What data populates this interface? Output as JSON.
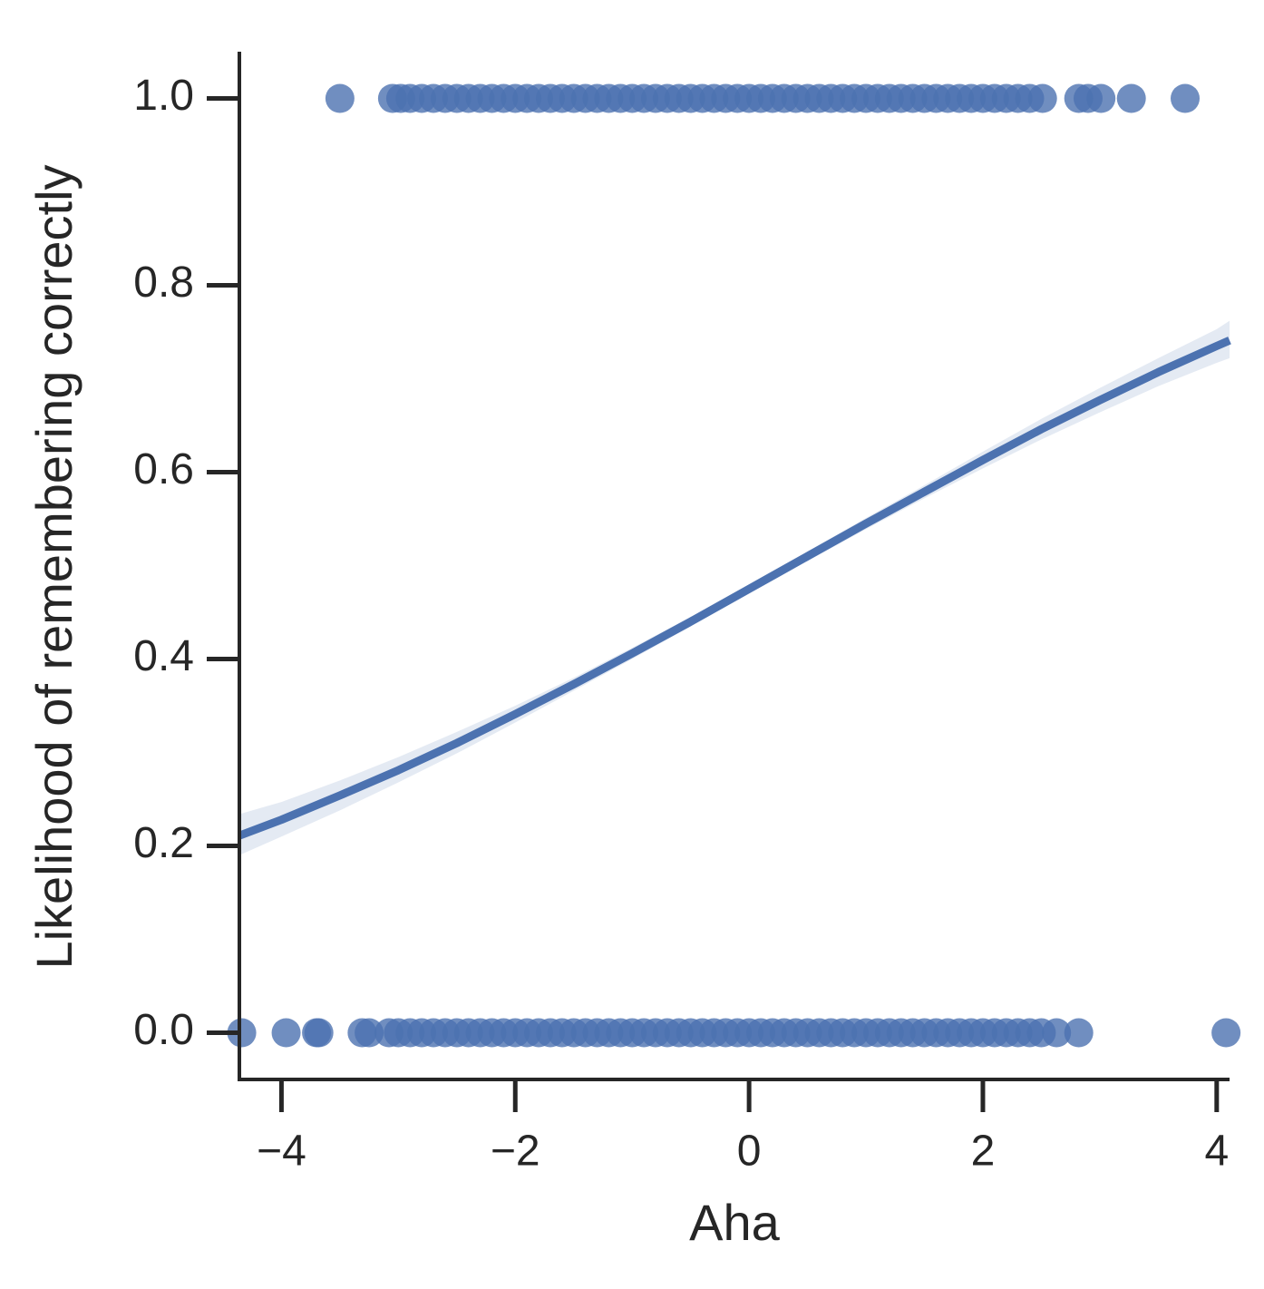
{
  "chart_data": {
    "type": "scatter",
    "xlabel": "Aha",
    "ylabel": "Likelihood of remembering correctly",
    "xlim": [
      -4.36,
      4.11
    ],
    "ylim": [
      -0.05,
      1.05
    ],
    "xticks": [
      {
        "value": -4,
        "label": "−4"
      },
      {
        "value": -2,
        "label": "−2"
      },
      0,
      2,
      4
    ],
    "yticks": [
      {
        "value": 0,
        "label": "0.0"
      },
      0.2,
      0.4,
      0.6,
      0.8,
      {
        "value": 1,
        "label": "1.0"
      }
    ],
    "series": [
      {
        "color": "#4c72b0",
        "x": [
          -3.5,
          -3.05,
          -2.98,
          -2.9,
          -2.8,
          -2.7,
          -2.6,
          -2.5,
          -2.4,
          -2.3,
          -2.2,
          -2.1,
          -2,
          -1.9,
          -1.8,
          -1.7,
          -1.6,
          -1.5,
          -1.4,
          -1.3,
          -1.2,
          -1.1,
          -1,
          -0.9,
          -0.8,
          -0.7,
          -0.6,
          -0.5,
          -0.4,
          -0.3,
          -0.2,
          -0.1,
          0,
          0.1,
          0.2,
          0.3,
          0.4,
          0.5,
          0.6,
          0.7,
          0.8,
          0.9,
          1,
          1.1,
          1.2,
          1.3,
          1.4,
          1.5,
          1.6,
          1.7,
          1.8,
          1.9,
          2,
          2.1,
          2.2,
          2.3,
          2.4,
          2.51,
          2.82,
          2.9,
          3.01,
          3.27,
          3.73
        ],
        "values": [
          1,
          1,
          1,
          1,
          1,
          1,
          1,
          1,
          1,
          1,
          1,
          1,
          1,
          1,
          1,
          1,
          1,
          1,
          1,
          1,
          1,
          1,
          1,
          1,
          1,
          1,
          1,
          1,
          1,
          1,
          1,
          1,
          1,
          1,
          1,
          1,
          1,
          1,
          1,
          1,
          1,
          1,
          1,
          1,
          1,
          1,
          1,
          1,
          1,
          1,
          1,
          1,
          1,
          1,
          1,
          1,
          1,
          1,
          1,
          1,
          1,
          1,
          1
        ]
      },
      {
        "color": "#4c72b0",
        "x": [
          -4.34,
          -3.96,
          -3.7,
          -3.68,
          -3.31,
          -3.25,
          -3.08,
          -3,
          -2.9,
          -2.8,
          -2.7,
          -2.6,
          -2.5,
          -2.4,
          -2.3,
          -2.2,
          -2.1,
          -2,
          -1.9,
          -1.8,
          -1.7,
          -1.6,
          -1.5,
          -1.4,
          -1.3,
          -1.2,
          -1.1,
          -1,
          -0.9,
          -0.8,
          -0.7,
          -0.6,
          -0.5,
          -0.4,
          -0.3,
          -0.2,
          -0.1,
          0,
          0.1,
          0.2,
          0.3,
          0.4,
          0.5,
          0.6,
          0.7,
          0.8,
          0.9,
          1,
          1.1,
          1.2,
          1.3,
          1.4,
          1.5,
          1.6,
          1.7,
          1.8,
          1.9,
          2,
          2.1,
          2.2,
          2.3,
          2.4,
          2.5,
          2.63,
          2.82,
          4.08
        ],
        "values": [
          0,
          0,
          0,
          0,
          0,
          0,
          0,
          0,
          0,
          0,
          0,
          0,
          0,
          0,
          0,
          0,
          0,
          0,
          0,
          0,
          0,
          0,
          0,
          0,
          0,
          0,
          0,
          0,
          0,
          0,
          0,
          0,
          0,
          0,
          0,
          0,
          0,
          0,
          0,
          0,
          0,
          0,
          0,
          0,
          0,
          0,
          0,
          0,
          0,
          0,
          0,
          0,
          0,
          0,
          0,
          0,
          0,
          0,
          0,
          0,
          0,
          0,
          0,
          0,
          0,
          0
        ]
      }
    ],
    "fit": {
      "color": "#4c72b0",
      "x": [
        -4.36,
        -4,
        -3.5,
        -3,
        -2.5,
        -2,
        -1.5,
        -1,
        -0.5,
        0,
        0.5,
        1,
        1.5,
        2,
        2.5,
        3,
        3.5,
        4,
        4.11
      ],
      "values": [
        0.211,
        0.228,
        0.254,
        0.281,
        0.31,
        0.341,
        0.373,
        0.406,
        0.44,
        0.475,
        0.51,
        0.545,
        0.579,
        0.613,
        0.646,
        0.677,
        0.707,
        0.735,
        0.741
      ],
      "ci_lower": [
        0.19,
        0.21,
        0.238,
        0.268,
        0.299,
        0.332,
        0.366,
        0.4,
        0.435,
        0.47,
        0.505,
        0.539,
        0.572,
        0.604,
        0.635,
        0.664,
        0.692,
        0.717,
        0.722
      ],
      "ci_upper": [
        0.234,
        0.247,
        0.27,
        0.295,
        0.322,
        0.35,
        0.38,
        0.412,
        0.445,
        0.48,
        0.515,
        0.551,
        0.586,
        0.622,
        0.657,
        0.69,
        0.722,
        0.753,
        0.762
      ]
    }
  }
}
